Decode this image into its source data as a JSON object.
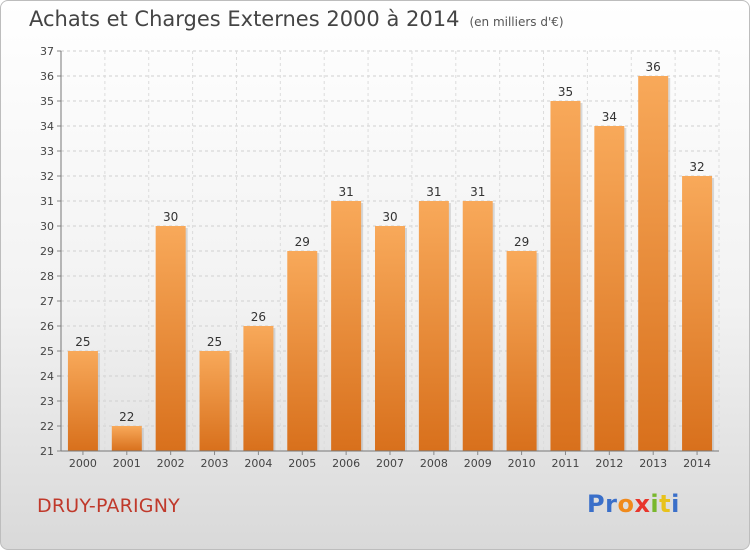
{
  "chart_data": {
    "type": "bar",
    "title": "Achats et Charges Externes 2000 à 2014",
    "subtitle": "(en milliers d'€)",
    "categories": [
      "2000",
      "2001",
      "2002",
      "2003",
      "2004",
      "2005",
      "2006",
      "2007",
      "2008",
      "2009",
      "2010",
      "2011",
      "2012",
      "2013",
      "2014"
    ],
    "values": [
      25,
      22,
      30,
      25,
      26,
      29,
      31,
      30,
      31,
      31,
      29,
      35,
      34,
      36,
      32
    ],
    "ylim": [
      21,
      37
    ],
    "yticks": [
      "21",
      "22",
      "23",
      "24",
      "25",
      "26",
      "27",
      "28",
      "29",
      "30",
      "31",
      "32",
      "33",
      "34",
      "35",
      "36",
      "37"
    ],
    "grid": true,
    "bar_color_top": "#f8a95a",
    "bar_color_bottom": "#d8701c"
  },
  "commune": "DRUY-PARIGNY",
  "logo": {
    "letters": [
      "P",
      "r",
      "o",
      "x",
      "i",
      "t",
      "i"
    ],
    "colors": [
      "#3a6fc9",
      "#3a6fc9",
      "#f08a1c",
      "#e8352b",
      "#79b72d",
      "#e8c21c",
      "#3a6fc9"
    ]
  }
}
